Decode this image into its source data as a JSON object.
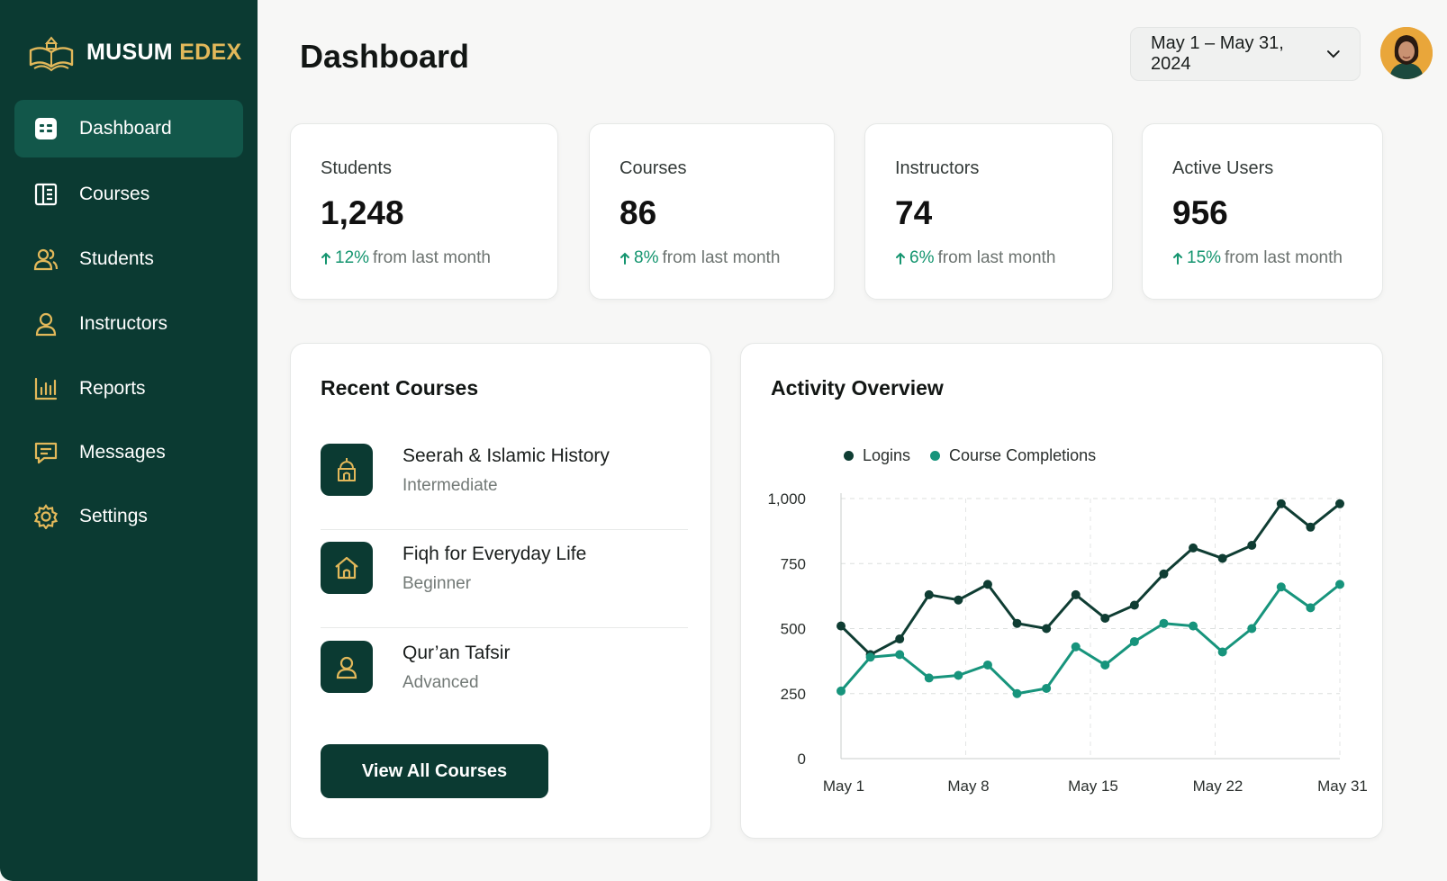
{
  "brand": {
    "name_part1": "MUSUM",
    "name_part2": "EDEX",
    "primary": "#0b3a32",
    "accent": "#e2b85a",
    "success": "#14956f"
  },
  "sidebar": {
    "items": [
      {
        "label": "Dashboard",
        "icon": "dashboard-icon",
        "active": true
      },
      {
        "label": "Courses",
        "icon": "book-icon"
      },
      {
        "label": "Students",
        "icon": "users-icon"
      },
      {
        "label": "Instructors",
        "icon": "user-icon"
      },
      {
        "label": "Reports",
        "icon": "bar-chart-icon"
      },
      {
        "label": "Messages",
        "icon": "message-icon"
      },
      {
        "label": "Settings",
        "icon": "gear-icon"
      }
    ]
  },
  "header": {
    "title": "Dashboard",
    "date_range": "May 1 – May 31, 2024",
    "avatar": "user-avatar"
  },
  "stats": [
    {
      "label": "Students",
      "value": "1,248",
      "change_pct": "12%",
      "change_text": "from last month"
    },
    {
      "label": "Courses",
      "value": "86",
      "change_pct": "8%",
      "change_text": "from last month"
    },
    {
      "label": "Instructors",
      "value": "74",
      "change_pct": "6%",
      "change_text": "from last month"
    },
    {
      "label": "Active Users",
      "value": "956",
      "change_pct": "15%",
      "change_text": "from last month"
    }
  ],
  "recent_courses": {
    "title": "Recent Courses",
    "items": [
      {
        "name": "Seerah & Islamic History",
        "level": "Intermediate",
        "icon": "mosque-icon"
      },
      {
        "name": "Fiqh for Everyday Life",
        "level": "Beginner",
        "icon": "home-icon"
      },
      {
        "name": "Qur’an Tafsir",
        "level": "Advanced",
        "icon": "person-icon"
      }
    ],
    "button_label": "View All Courses"
  },
  "activity": {
    "title": "Activity Overview"
  },
  "chart_data": {
    "type": "line",
    "title": "Activity Overview",
    "x_labels": [
      "May 1",
      "May 8",
      "May 15",
      "May 22",
      "May 31"
    ],
    "y_ticks": [
      "0",
      "250",
      "500",
      "750",
      "1,000"
    ],
    "ylim": [
      0,
      1000
    ],
    "grid": true,
    "legend": "top-left",
    "series": [
      {
        "name": "Logins",
        "color": "#0f3d33",
        "values": [
          510,
          400,
          460,
          630,
          610,
          670,
          520,
          500,
          630,
          540,
          590,
          710,
          810,
          770,
          820,
          980,
          890,
          980
        ]
      },
      {
        "name": "Course Completions",
        "color": "#17947c",
        "values": [
          260,
          390,
          400,
          310,
          320,
          360,
          250,
          270,
          430,
          360,
          450,
          520,
          510,
          410,
          500,
          660,
          580,
          670
        ]
      }
    ]
  }
}
